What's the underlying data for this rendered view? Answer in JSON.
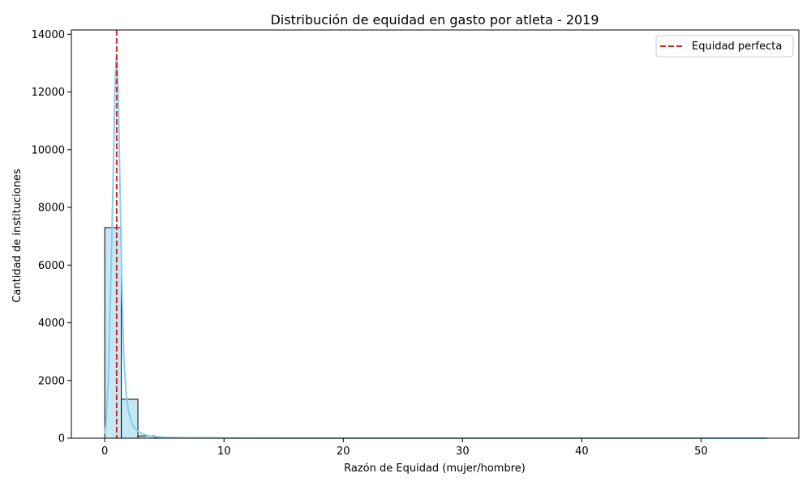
{
  "chart_data": {
    "type": "bar",
    "title": "Distribución de equidad en gasto por atleta - 2019",
    "xlabel": "Razón de Equidad (mujer/hombre)",
    "ylabel": "Cantidad de instituciones",
    "xlim": [
      -2.8,
      58.2
    ],
    "ylim": [
      0,
      14150
    ],
    "x_ticks": [
      0,
      10,
      20,
      30,
      40,
      50
    ],
    "y_ticks": [
      0,
      2000,
      4000,
      6000,
      8000,
      10000,
      12000,
      14000
    ],
    "bin_width": 1.39,
    "bins": [
      {
        "x0": 0.0,
        "count": 7300
      },
      {
        "x0": 1.39,
        "count": 1350
      },
      {
        "x0": 2.78,
        "count": 80
      },
      {
        "x0": 4.17,
        "count": 25
      },
      {
        "x0": 5.56,
        "count": 12
      },
      {
        "x0": 6.95,
        "count": 8
      },
      {
        "x0": 8.34,
        "count": 5
      },
      {
        "x0": 9.73,
        "count": 4
      },
      {
        "x0": 11.12,
        "count": 3
      },
      {
        "x0": 12.51,
        "count": 2
      },
      {
        "x0": 13.9,
        "count": 2
      },
      {
        "x0": 15.29,
        "count": 1
      },
      {
        "x0": 16.68,
        "count": 1
      },
      {
        "x0": 18.07,
        "count": 1
      },
      {
        "x0": 22.24,
        "count": 1
      },
      {
        "x0": 29.19,
        "count": 1
      },
      {
        "x0": 40.31,
        "count": 1
      },
      {
        "x0": 54.21,
        "count": 1
      }
    ],
    "kde": {
      "x": [
        0.0,
        0.1,
        0.3,
        0.5,
        0.7,
        0.85,
        0.95,
        1.0,
        1.05,
        1.15,
        1.3,
        1.45,
        1.6,
        1.8,
        2.0,
        2.3,
        2.6,
        3.0,
        3.5,
        4.0,
        5.0,
        6.0,
        8.0,
        10.0,
        15.0,
        20.0,
        30.0,
        40.0,
        50.0,
        55.5
      ],
      "y": [
        150,
        500,
        2000,
        5200,
        9000,
        12000,
        13100,
        13250,
        13000,
        11500,
        8200,
        5000,
        2800,
        1500,
        900,
        500,
        300,
        180,
        100,
        60,
        30,
        18,
        10,
        6,
        4,
        3,
        2,
        2,
        2,
        1
      ]
    },
    "reference_line": {
      "x": 1.0,
      "label": "Equidad perfecta",
      "color": "#d62728",
      "style": "dashed"
    },
    "colors": {
      "bar_fill": "#c6e7f4",
      "bar_edge": "#000000",
      "kde": "#87ceeb"
    },
    "legend": {
      "position": "top-right",
      "entries": [
        "Equidad perfecta"
      ]
    }
  }
}
